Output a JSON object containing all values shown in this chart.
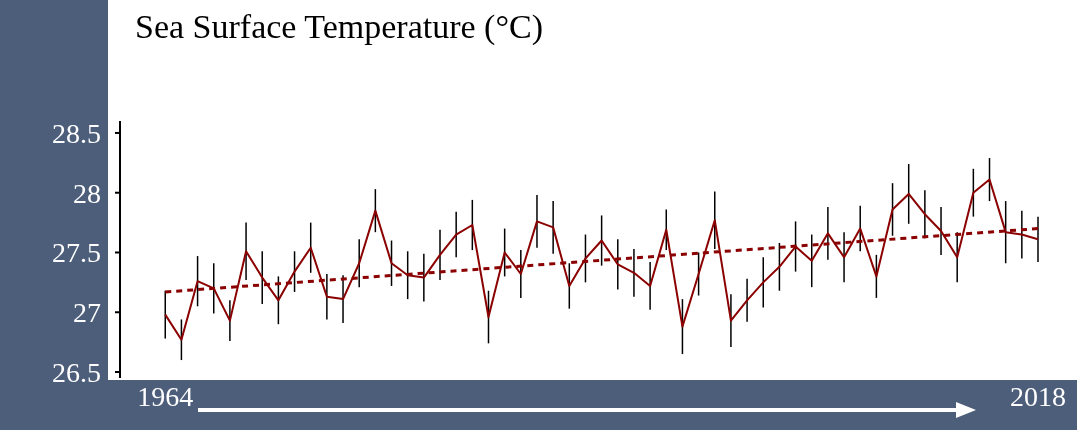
{
  "chart_data": {
    "type": "line",
    "title": "Sea Surface Temperature (°C)",
    "x": [
      1964,
      1965,
      1966,
      1967,
      1968,
      1969,
      1970,
      1971,
      1972,
      1973,
      1974,
      1975,
      1976,
      1977,
      1978,
      1979,
      1980,
      1981,
      1982,
      1983,
      1984,
      1985,
      1986,
      1987,
      1988,
      1989,
      1990,
      1991,
      1992,
      1993,
      1994,
      1995,
      1996,
      1997,
      1998,
      1999,
      2000,
      2001,
      2002,
      2003,
      2004,
      2005,
      2006,
      2007,
      2008,
      2009,
      2010,
      2011,
      2012,
      2013,
      2014,
      2015,
      2016,
      2017,
      2018
    ],
    "series": [
      {
        "color": "#8b0000",
        "line_style": "solid",
        "values": [
          26.98,
          26.77,
          27.26,
          27.2,
          26.93,
          27.51,
          27.29,
          27.1,
          27.34,
          27.54,
          27.13,
          27.11,
          27.41,
          27.85,
          27.41,
          27.31,
          27.29,
          27.48,
          27.65,
          27.73,
          26.96,
          27.5,
          27.32,
          27.76,
          27.71,
          27.22,
          27.45,
          27.6,
          27.4,
          27.33,
          27.22,
          27.69,
          26.88,
          27.32,
          27.77,
          26.93,
          27.1,
          27.25,
          27.38,
          27.55,
          27.43,
          27.66,
          27.46,
          27.7,
          27.3,
          27.86,
          27.99,
          27.82,
          27.68,
          27.46,
          28.0,
          28.11,
          27.67,
          27.65,
          27.61
        ],
        "errors": [
          0.2,
          0.17,
          0.21,
          0.21,
          0.17,
          0.24,
          0.22,
          0.2,
          0.17,
          0.21,
          0.19,
          0.2,
          0.2,
          0.18,
          0.19,
          0.2,
          0.2,
          0.21,
          0.19,
          0.21,
          0.22,
          0.2,
          0.2,
          0.22,
          0.22,
          0.19,
          0.2,
          0.21,
          0.21,
          0.2,
          0.2,
          0.17,
          0.23,
          0.18,
          0.24,
          0.22,
          0.18,
          0.21,
          0.2,
          0.21,
          0.22,
          0.22,
          0.21,
          0.19,
          0.18,
          0.22,
          0.25,
          0.2,
          0.2,
          0.21,
          0.2,
          0.18,
          0.26,
          0.2,
          0.19
        ]
      },
      {
        "color": "#8b0000",
        "line_style": "dashed",
        "x": [
          1964,
          2018
        ],
        "values": [
          27.17,
          27.7
        ]
      }
    ],
    "xlim": [
      1961.2,
      2018
    ],
    "xticks": [
      1964,
      2018
    ],
    "ylim": [
      26.45,
      28.6
    ],
    "yticks": [
      26.5,
      27,
      27.5,
      28,
      28.5
    ],
    "grid": false,
    "marker": "none"
  }
}
